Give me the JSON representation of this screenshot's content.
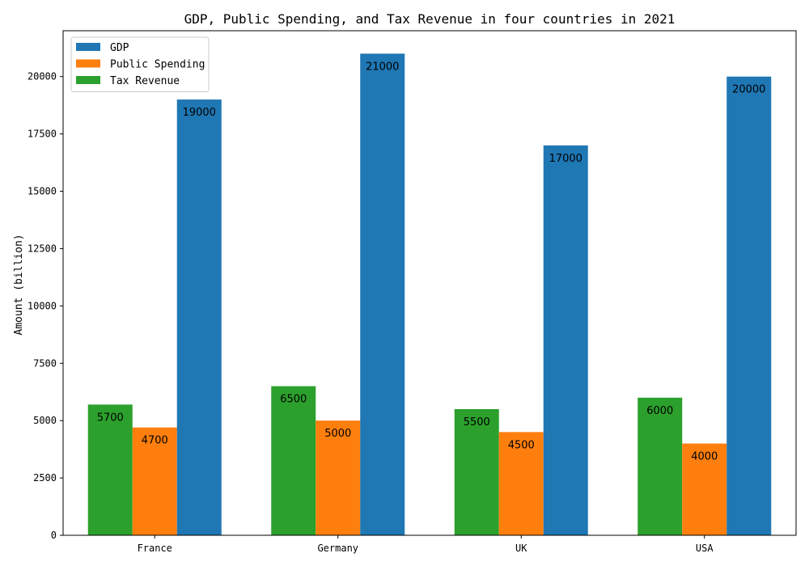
{
  "chart_data": {
    "type": "bar",
    "title": "GDP, Public Spending, and Tax Revenue in four countries in 2021",
    "xlabel": "",
    "ylabel": "Amount (billion)",
    "categories": [
      "France",
      "Germany",
      "UK",
      "USA"
    ],
    "ylim": [
      0,
      22000
    ],
    "yticks": [
      0,
      2500,
      5000,
      7500,
      10000,
      12500,
      15000,
      17500,
      20000
    ],
    "grid": false,
    "legend_position": "top-left",
    "bar_order": [
      "Tax Revenue",
      "Public Spending",
      "GDP"
    ],
    "legend_order": [
      "GDP",
      "Public Spending",
      "Tax Revenue"
    ],
    "series": [
      {
        "name": "GDP",
        "color": "#1f77b4",
        "values": [
          19000,
          21000,
          17000,
          20000
        ]
      },
      {
        "name": "Public Spending",
        "color": "#ff7f0e",
        "values": [
          4700,
          5000,
          4500,
          4000
        ]
      },
      {
        "name": "Tax Revenue",
        "color": "#2ca02c",
        "values": [
          5700,
          6500,
          5500,
          6000
        ]
      }
    ]
  }
}
